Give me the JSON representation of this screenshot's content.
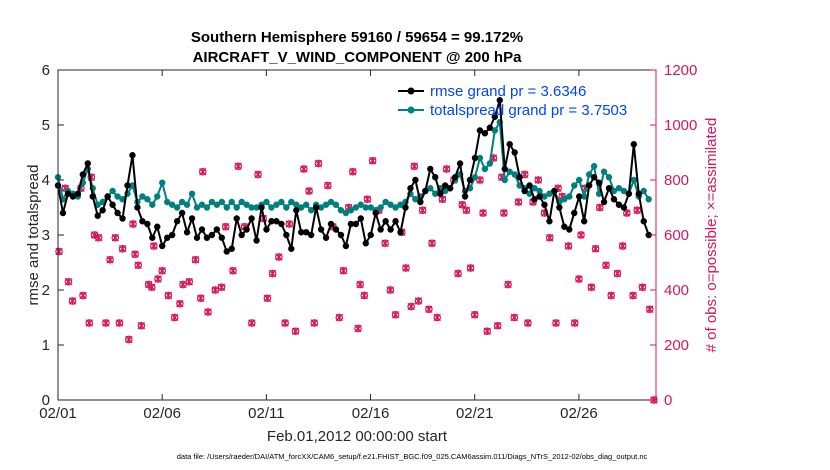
{
  "chart_data": {
    "type": "line",
    "title_line1": "Southern Hemisphere 59160 / 59654 = 99.172%",
    "title_line2": "AIRCRAFT_V_WIND_COMPONENT @ 200 hPa",
    "xlabel": "Feb.01,2012 00:00:00 start",
    "ylabel_left": "rmse and totalspread",
    "ylabel_right": "# of obs: o=possible; ×=assimilated",
    "footnote": "data file: /Users/raeder/DAI/ATM_forcXX/CAM6_setup/f.e21.FHIST_BGC.f09_025.CAM6assim.011/Diags_NTrS_2012-02/obs_diag_output.nc",
    "x_ticks": [
      {
        "day": 0,
        "label": "02/01"
      },
      {
        "day": 5,
        "label": "02/06"
      },
      {
        "day": 10,
        "label": "02/11"
      },
      {
        "day": 15,
        "label": "02/16"
      },
      {
        "day": 20,
        "label": "02/21"
      },
      {
        "day": 25,
        "label": "02/26"
      }
    ],
    "xlim": [
      0,
      28.7
    ],
    "ylim_left": [
      0,
      6
    ],
    "yticks_left": [
      "0",
      "1",
      "2",
      "3",
      "4",
      "5",
      "6"
    ],
    "ylim_right": [
      0,
      1200
    ],
    "yticks_right": [
      "0",
      "200",
      "400",
      "600",
      "800",
      "1000",
      "1200"
    ],
    "legend": [
      {
        "label": "rmse grand pr = 3.6346",
        "color": "#000000"
      },
      {
        "label": "totalspread grand pr = 3.7503",
        "color": "#007f7f"
      }
    ],
    "colors": {
      "rmse": "#000000",
      "spread": "#007f7f",
      "obs": "#d6175b",
      "legend_text": "#0044ff"
    },
    "rmse": [
      3.9,
      3.4,
      3.75,
      3.7,
      3.75,
      4.1,
      4.3,
      3.7,
      3.35,
      3.45,
      3.7,
      3.55,
      3.4,
      3.3,
      3.9,
      4.45,
      3.5,
      3.25,
      3.2,
      2.95,
      3.15,
      2.8,
      2.95,
      3.0,
      3.25,
      3.4,
      3.05,
      3.3,
      2.95,
      3.1,
      2.95,
      3.0,
      3.1,
      2.95,
      2.7,
      2.75,
      3.3,
      3.0,
      3.1,
      3.3,
      2.9,
      3.5,
      3.1,
      3.25,
      3.25,
      3.2,
      3.0,
      2.75,
      3.45,
      3.05,
      3.05,
      3.0,
      3.5,
      3.1,
      2.95,
      3.2,
      3.1,
      3.0,
      2.8,
      3.2,
      3.2,
      3.3,
      2.85,
      3.0,
      3.4,
      3.1,
      3.25,
      3.1,
      3.25,
      3.05,
      3.5,
      3.85,
      4.0,
      3.6,
      3.8,
      4.2,
      4.05,
      3.75,
      3.9,
      3.85,
      4.05,
      4.3,
      3.7,
      4.0,
      4.4,
      4.9,
      4.85,
      4.95,
      5.15,
      5.45,
      4.2,
      4.65,
      4.5,
      4.05,
      3.8,
      3.9,
      3.65,
      3.7,
      3.55,
      3.25,
      3.8,
      3.5,
      3.15,
      3.1,
      3.4,
      3.7,
      3.25,
      3.9,
      4.05,
      3.95,
      3.6,
      3.85,
      3.65,
      3.55,
      3.5,
      3.75,
      4.65,
      3.75,
      3.25,
      3.0
    ],
    "spread": [
      4.05,
      3.65,
      3.8,
      3.75,
      3.7,
      3.95,
      4.2,
      3.85,
      3.55,
      3.6,
      3.7,
      3.8,
      3.7,
      3.65,
      3.75,
      3.9,
      3.6,
      3.7,
      3.65,
      3.55,
      3.7,
      3.95,
      3.6,
      3.55,
      3.5,
      3.6,
      3.55,
      3.75,
      3.5,
      3.55,
      3.5,
      3.6,
      3.55,
      3.6,
      3.5,
      3.6,
      3.5,
      3.6,
      3.55,
      3.5,
      3.5,
      3.55,
      3.6,
      3.5,
      3.55,
      3.6,
      3.5,
      3.6,
      3.55,
      3.5,
      3.55,
      3.45,
      3.55,
      3.5,
      3.55,
      3.6,
      3.55,
      3.45,
      3.4,
      3.45,
      3.5,
      3.55,
      3.5,
      3.5,
      3.45,
      3.5,
      3.6,
      3.55,
      3.5,
      3.55,
      3.6,
      3.75,
      3.65,
      3.7,
      3.8,
      3.85,
      3.75,
      3.85,
      3.8,
      3.85,
      4.0,
      4.1,
      3.8,
      3.85,
      4.05,
      4.4,
      4.2,
      4.3,
      4.9,
      5.05,
      4.0,
      4.15,
      4.1,
      3.9,
      3.85,
      3.75,
      3.85,
      3.8,
      3.7,
      3.75,
      3.8,
      3.6,
      3.65,
      3.7,
      3.9,
      4.0,
      3.7,
      4.1,
      4.25,
      3.75,
      4.15,
      4.05,
      3.8,
      3.85,
      3.8,
      3.75,
      4.0,
      3.7,
      3.8,
      3.65
    ],
    "obs_possible": [
      [
        0.05,
        540
      ],
      [
        0.35,
        770
      ],
      [
        0.5,
        430
      ],
      [
        0.7,
        360
      ],
      [
        1.1,
        770
      ],
      [
        1.2,
        380
      ],
      [
        1.5,
        280
      ],
      [
        1.6,
        810
      ],
      [
        1.75,
        600
      ],
      [
        1.95,
        590
      ],
      [
        2.3,
        280
      ],
      [
        2.5,
        510
      ],
      [
        2.75,
        590
      ],
      [
        2.95,
        280
      ],
      [
        3.1,
        550
      ],
      [
        3.4,
        220
      ],
      [
        3.6,
        640
      ],
      [
        3.7,
        530
      ],
      [
        3.85,
        490
      ],
      [
        4.0,
        270
      ],
      [
        4.35,
        420
      ],
      [
        4.5,
        410
      ],
      [
        4.6,
        560
      ],
      [
        4.8,
        440
      ],
      [
        5.0,
        470
      ],
      [
        5.3,
        380
      ],
      [
        5.6,
        300
      ],
      [
        5.85,
        350
      ],
      [
        6.0,
        420
      ],
      [
        6.3,
        430
      ],
      [
        6.6,
        510
      ],
      [
        6.85,
        370
      ],
      [
        6.95,
        830
      ],
      [
        7.2,
        320
      ],
      [
        7.55,
        400
      ],
      [
        7.85,
        410
      ],
      [
        8.05,
        630
      ],
      [
        8.4,
        470
      ],
      [
        8.65,
        850
      ],
      [
        8.95,
        630
      ],
      [
        9.3,
        280
      ],
      [
        9.6,
        820
      ],
      [
        9.85,
        660
      ],
      [
        10.05,
        370
      ],
      [
        10.3,
        460
      ],
      [
        10.6,
        520
      ],
      [
        10.9,
        280
      ],
      [
        11.1,
        640
      ],
      [
        11.4,
        250
      ],
      [
        11.8,
        840
      ],
      [
        12.05,
        760
      ],
      [
        12.3,
        280
      ],
      [
        12.5,
        860
      ],
      [
        12.95,
        780
      ],
      [
        13.2,
        630
      ],
      [
        13.5,
        300
      ],
      [
        13.7,
        470
      ],
      [
        13.95,
        700
      ],
      [
        14.15,
        830
      ],
      [
        14.4,
        260
      ],
      [
        14.5,
        420
      ],
      [
        14.7,
        380
      ],
      [
        14.85,
        730
      ],
      [
        15.1,
        870
      ],
      [
        15.4,
        690
      ],
      [
        15.7,
        570
      ],
      [
        15.95,
        400
      ],
      [
        16.2,
        310
      ],
      [
        16.5,
        610
      ],
      [
        16.7,
        480
      ],
      [
        16.95,
        340
      ],
      [
        17.1,
        850
      ],
      [
        17.3,
        360
      ],
      [
        17.5,
        690
      ],
      [
        17.8,
        330
      ],
      [
        17.95,
        570
      ],
      [
        18.2,
        300
      ],
      [
        18.45,
        730
      ],
      [
        18.65,
        840
      ],
      [
        19.0,
        800
      ],
      [
        19.2,
        460
      ],
      [
        19.4,
        710
      ],
      [
        19.6,
        690
      ],
      [
        19.8,
        480
      ],
      [
        20.0,
        310
      ],
      [
        20.25,
        800
      ],
      [
        20.4,
        680
      ],
      [
        20.6,
        250
      ],
      [
        20.9,
        880
      ],
      [
        21.1,
        270
      ],
      [
        21.3,
        810
      ],
      [
        21.4,
        680
      ],
      [
        21.6,
        420
      ],
      [
        21.9,
        300
      ],
      [
        22.1,
        720
      ],
      [
        22.4,
        820
      ],
      [
        22.55,
        280
      ],
      [
        22.8,
        720
      ],
      [
        23.05,
        800
      ],
      [
        23.35,
        680
      ],
      [
        23.6,
        590
      ],
      [
        23.9,
        280
      ],
      [
        24.0,
        770
      ],
      [
        24.2,
        740
      ],
      [
        24.5,
        560
      ],
      [
        24.8,
        280
      ],
      [
        25.0,
        440
      ],
      [
        25.1,
        600
      ],
      [
        25.3,
        770
      ],
      [
        25.6,
        410
      ],
      [
        25.8,
        550
      ],
      [
        26.0,
        700
      ],
      [
        26.3,
        490
      ],
      [
        26.55,
        380
      ],
      [
        26.85,
        460
      ],
      [
        27.1,
        560
      ],
      [
        27.3,
        680
      ],
      [
        27.6,
        380
      ],
      [
        27.8,
        690
      ],
      [
        28.05,
        410
      ],
      [
        28.4,
        330
      ],
      [
        28.6,
        0
      ]
    ],
    "obs_assimilated": [
      [
        0.05,
        540
      ],
      [
        0.35,
        770
      ],
      [
        0.5,
        430
      ],
      [
        0.7,
        360
      ],
      [
        1.1,
        770
      ],
      [
        1.2,
        380
      ],
      [
        1.5,
        280
      ],
      [
        1.6,
        810
      ],
      [
        1.75,
        600
      ],
      [
        1.95,
        590
      ],
      [
        2.3,
        280
      ],
      [
        2.5,
        510
      ],
      [
        2.75,
        590
      ],
      [
        2.95,
        280
      ],
      [
        3.1,
        550
      ],
      [
        3.4,
        220
      ],
      [
        3.6,
        640
      ],
      [
        3.7,
        530
      ],
      [
        3.85,
        490
      ],
      [
        4.0,
        270
      ],
      [
        4.35,
        420
      ],
      [
        4.5,
        410
      ],
      [
        4.6,
        560
      ],
      [
        4.8,
        440
      ],
      [
        5.0,
        470
      ],
      [
        5.3,
        380
      ],
      [
        5.6,
        300
      ],
      [
        5.85,
        350
      ],
      [
        6.0,
        420
      ],
      [
        6.3,
        430
      ],
      [
        6.6,
        510
      ],
      [
        6.85,
        370
      ],
      [
        6.95,
        830
      ],
      [
        7.2,
        320
      ],
      [
        7.55,
        400
      ],
      [
        7.85,
        410
      ],
      [
        8.05,
        630
      ],
      [
        8.4,
        470
      ],
      [
        8.65,
        850
      ],
      [
        8.95,
        630
      ],
      [
        9.3,
        280
      ],
      [
        9.6,
        820
      ],
      [
        9.85,
        660
      ],
      [
        10.05,
        370
      ],
      [
        10.3,
        460
      ],
      [
        10.6,
        520
      ],
      [
        10.9,
        280
      ],
      [
        11.1,
        640
      ],
      [
        11.4,
        250
      ],
      [
        11.8,
        840
      ],
      [
        12.05,
        760
      ],
      [
        12.3,
        280
      ],
      [
        12.5,
        860
      ],
      [
        12.95,
        780
      ],
      [
        13.2,
        630
      ],
      [
        13.5,
        300
      ],
      [
        13.7,
        470
      ],
      [
        13.95,
        700
      ],
      [
        14.15,
        830
      ],
      [
        14.4,
        260
      ],
      [
        14.5,
        420
      ],
      [
        14.7,
        380
      ],
      [
        14.85,
        730
      ],
      [
        15.1,
        870
      ],
      [
        15.4,
        690
      ],
      [
        15.7,
        570
      ],
      [
        15.95,
        400
      ],
      [
        16.2,
        310
      ],
      [
        16.5,
        610
      ],
      [
        16.7,
        480
      ],
      [
        16.95,
        340
      ],
      [
        17.1,
        850
      ],
      [
        17.3,
        360
      ],
      [
        17.5,
        690
      ],
      [
        17.8,
        330
      ],
      [
        17.95,
        570
      ],
      [
        18.2,
        300
      ],
      [
        18.45,
        730
      ],
      [
        18.65,
        840
      ],
      [
        19.0,
        800
      ],
      [
        19.2,
        460
      ],
      [
        19.4,
        710
      ],
      [
        19.6,
        690
      ],
      [
        19.8,
        480
      ],
      [
        20.0,
        310
      ],
      [
        20.25,
        800
      ],
      [
        20.4,
        680
      ],
      [
        20.6,
        250
      ],
      [
        20.9,
        880
      ],
      [
        21.1,
        270
      ],
      [
        21.3,
        810
      ],
      [
        21.4,
        680
      ],
      [
        21.6,
        420
      ],
      [
        21.9,
        300
      ],
      [
        22.1,
        720
      ],
      [
        22.4,
        820
      ],
      [
        22.55,
        280
      ],
      [
        22.8,
        720
      ],
      [
        23.05,
        800
      ],
      [
        23.35,
        680
      ],
      [
        23.6,
        590
      ],
      [
        23.9,
        280
      ],
      [
        24.0,
        770
      ],
      [
        24.2,
        740
      ],
      [
        24.5,
        560
      ],
      [
        24.8,
        280
      ],
      [
        25.0,
        440
      ],
      [
        25.1,
        600
      ],
      [
        25.3,
        770
      ],
      [
        25.6,
        410
      ],
      [
        25.8,
        550
      ],
      [
        26.0,
        700
      ],
      [
        26.3,
        490
      ],
      [
        26.55,
        380
      ],
      [
        26.85,
        460
      ],
      [
        27.1,
        560
      ],
      [
        27.3,
        680
      ],
      [
        27.6,
        380
      ],
      [
        27.8,
        690
      ],
      [
        28.05,
        410
      ],
      [
        28.4,
        330
      ],
      [
        28.6,
        0
      ]
    ]
  }
}
